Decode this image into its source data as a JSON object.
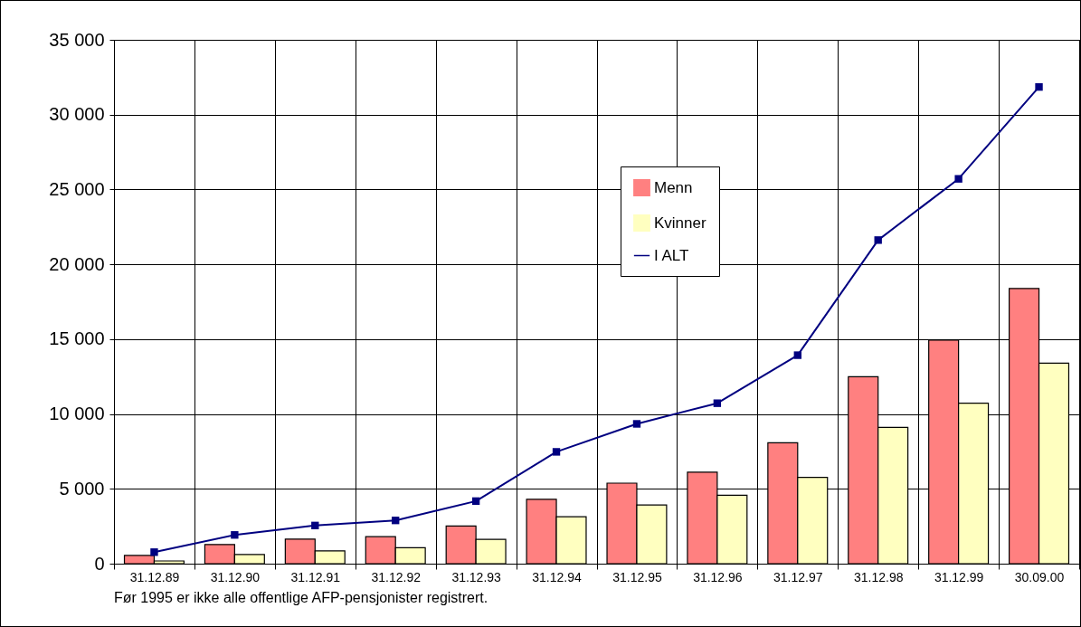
{
  "chart_data": {
    "type": "bar",
    "categories": [
      "31.12.89",
      "31.12.90",
      "31.12.91",
      "31.12.92",
      "31.12.93",
      "31.12.94",
      "31.12.95",
      "31.12.96",
      "31.12.97",
      "31.12.98",
      "31.12.99",
      "30.09.00"
    ],
    "series": [
      {
        "name": "Menn",
        "color": "#ff8080",
        "values": [
          550,
          1280,
          1640,
          1800,
          2520,
          4300,
          5380,
          6110,
          8080,
          12490,
          14930,
          18390
        ]
      },
      {
        "name": "Kvinner",
        "color": "#ffffc0",
        "values": [
          180,
          610,
          850,
          1070,
          1620,
          3130,
          3920,
          4570,
          5760,
          9100,
          10720,
          13400
        ]
      },
      {
        "name": "I ALT",
        "type": "line",
        "color": "#000080",
        "values": [
          770,
          1920,
          2550,
          2890,
          4180,
          7470,
          9340,
          10720,
          13930,
          21620,
          25710,
          31850
        ]
      }
    ],
    "ylim": [
      0,
      35000
    ],
    "yticks": [
      {
        "value": 0,
        "label": "0"
      },
      {
        "value": 5000,
        "label": "5 000"
      },
      {
        "value": 10000,
        "label": "10 000"
      },
      {
        "value": 15000,
        "label": "15 000"
      },
      {
        "value": 20000,
        "label": "20 000"
      },
      {
        "value": 25000,
        "label": "25 000"
      },
      {
        "value": 30000,
        "label": "30 000"
      },
      {
        "value": 35000,
        "label": "35 000"
      }
    ],
    "grid": true,
    "legend": "top",
    "marker": "square",
    "line_style": "solid",
    "annotations": [
      "Før 1995 er ikke alle offentlige AFP-pensjonister registrert."
    ]
  }
}
